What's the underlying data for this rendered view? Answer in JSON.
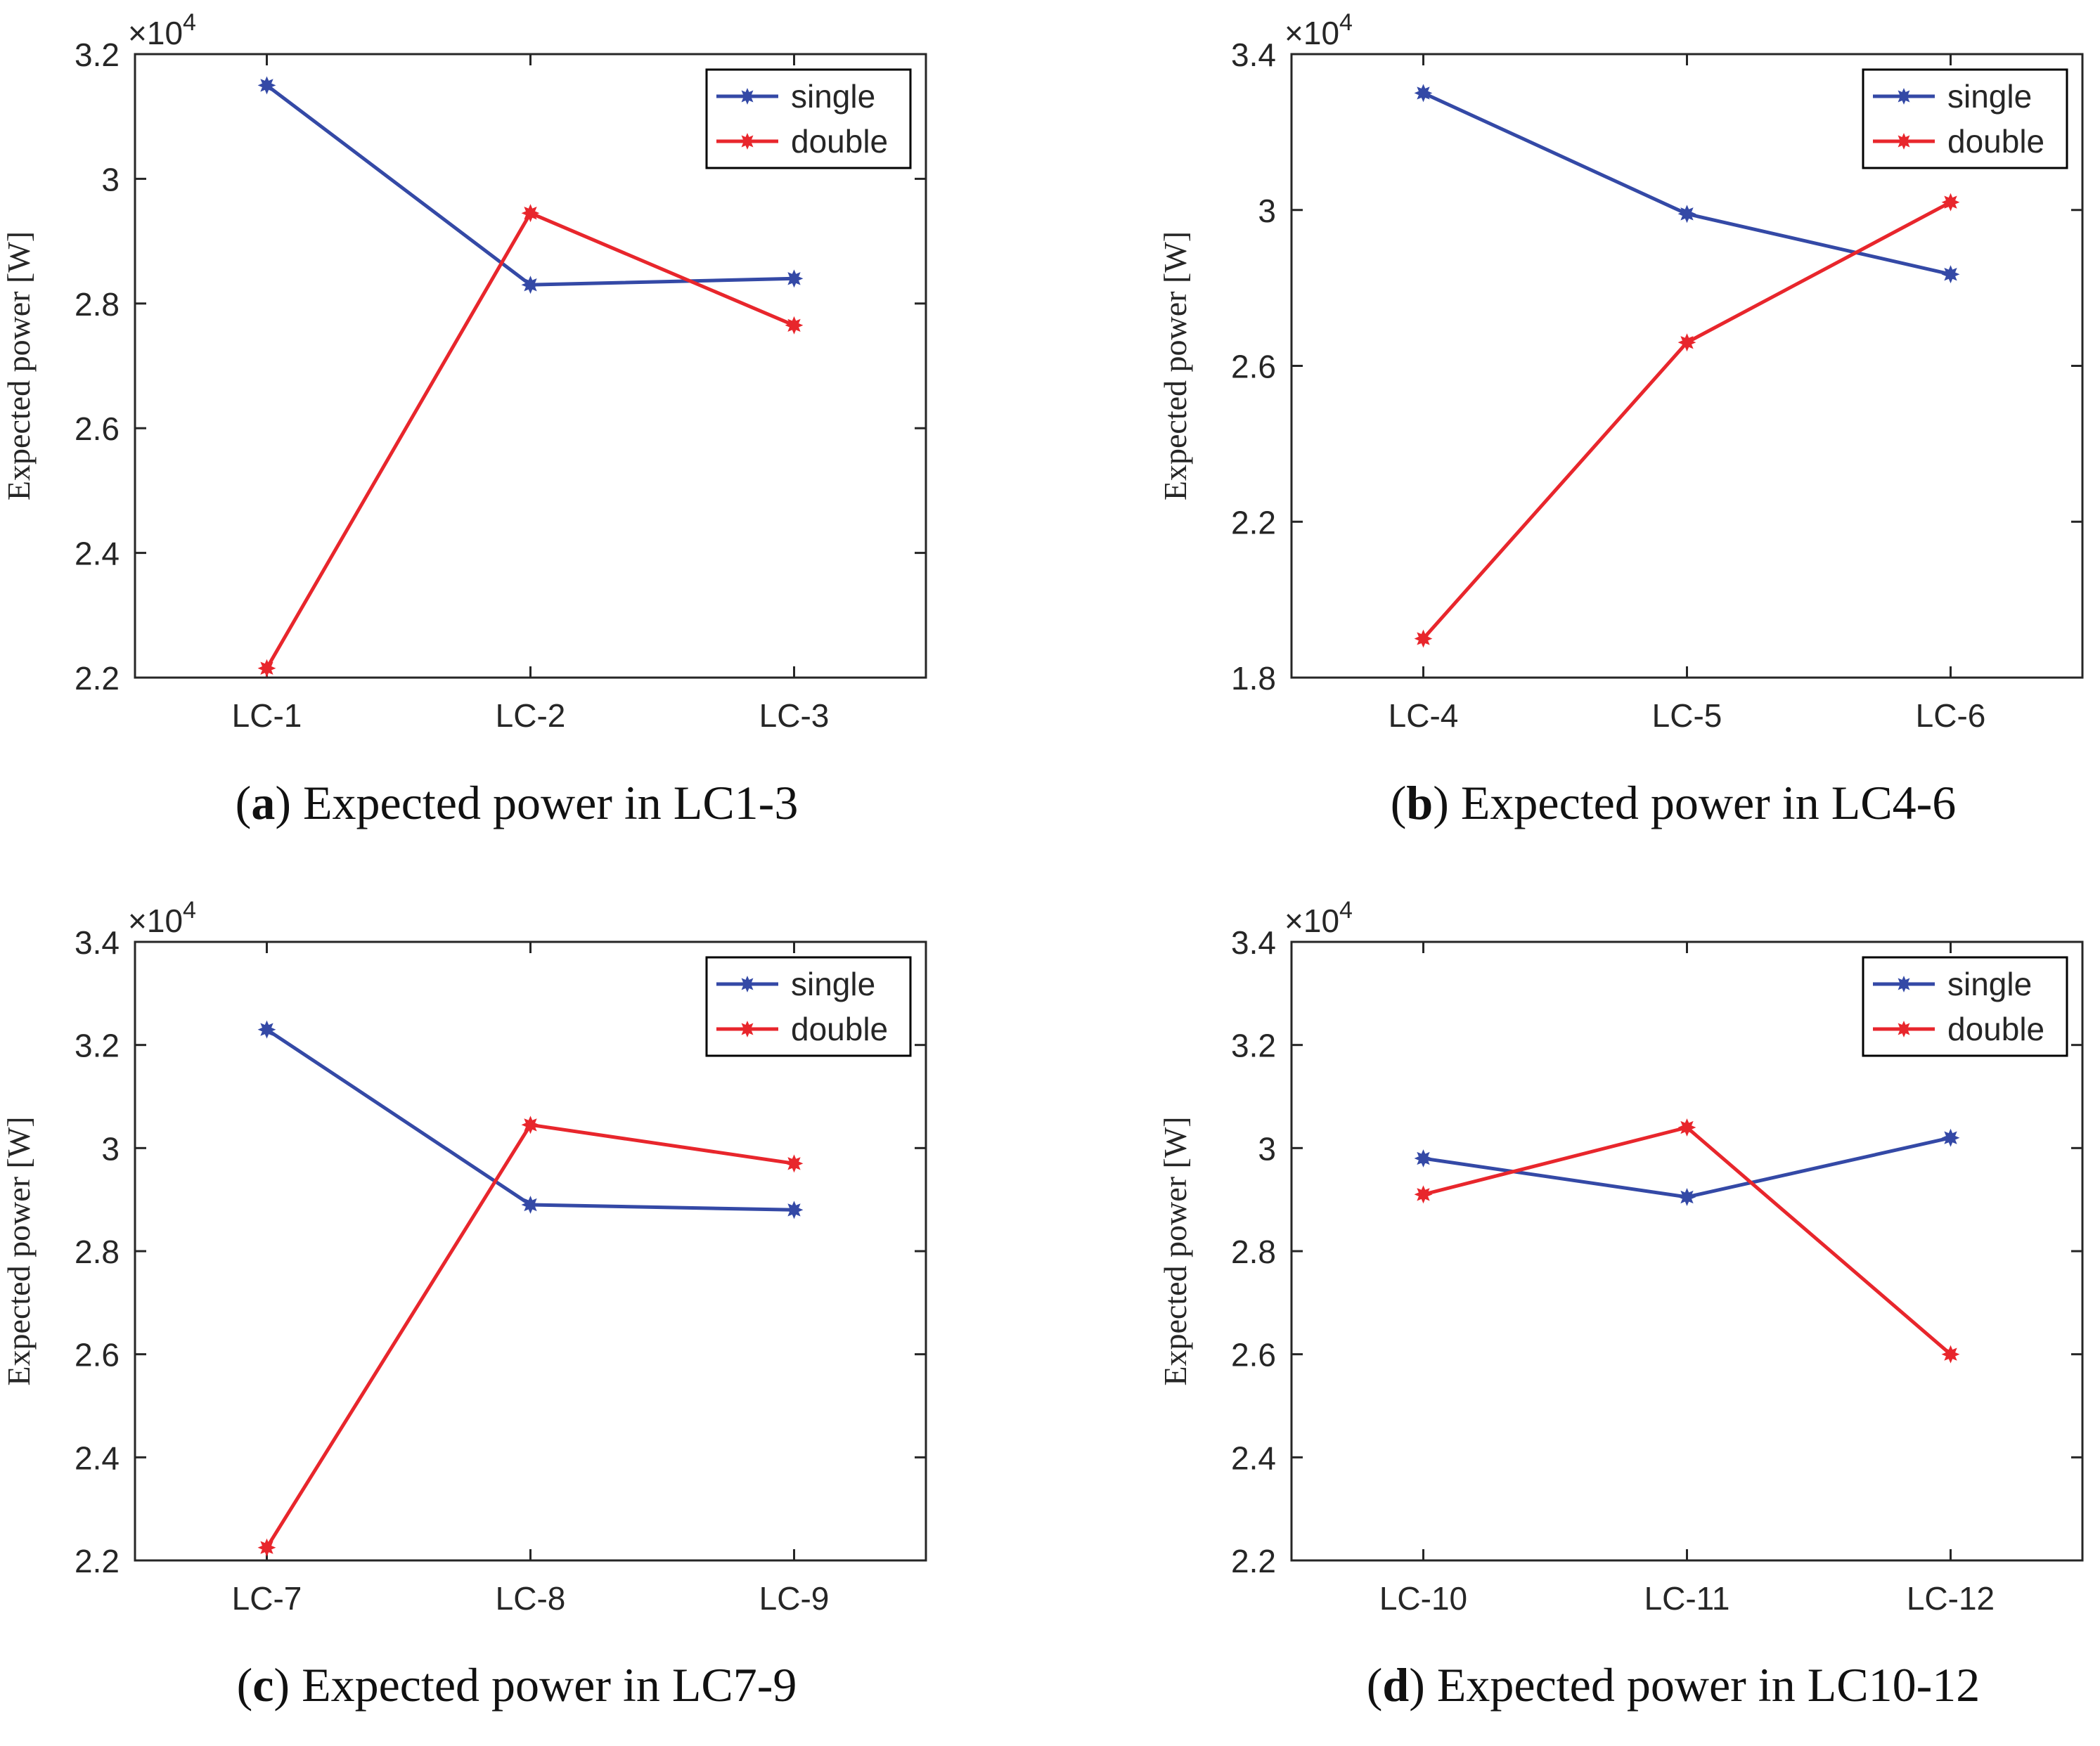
{
  "figure": {
    "panels": [
      "a",
      "b",
      "c",
      "d"
    ]
  },
  "style": {
    "single_color": "#3449a6",
    "double_color": "#e8262c",
    "axis_color": "#262626"
  },
  "chart_data": [
    {
      "id": "a",
      "type": "line",
      "caption_letter": "a",
      "caption_text": "Expected power in LC1-3",
      "categories": [
        "LC-1",
        "LC-2",
        "LC-3"
      ],
      "series": [
        {
          "name": "single",
          "values": [
            3.15,
            2.83,
            2.84
          ]
        },
        {
          "name": "double",
          "values": [
            2.215,
            2.945,
            2.765
          ]
        }
      ],
      "ylabel": "Expected power [W]",
      "exponent_label": "×10",
      "exponent_power": "4",
      "ylim": [
        2.2,
        3.2
      ],
      "yticks": [
        2.2,
        2.4,
        2.6,
        2.8,
        3.0,
        3.2
      ],
      "ytick_labels": [
        "2.2",
        "2.4",
        "2.6",
        "2.8",
        "3",
        "3.2"
      ],
      "legend": "top-right"
    },
    {
      "id": "b",
      "type": "line",
      "caption_letter": "b",
      "caption_text": "Expected power in LC4-6",
      "categories": [
        "LC-4",
        "LC-5",
        "LC-6"
      ],
      "series": [
        {
          "name": "single",
          "values": [
            3.3,
            2.99,
            2.835
          ]
        },
        {
          "name": "double",
          "values": [
            1.9,
            2.66,
            3.02
          ]
        }
      ],
      "ylabel": "Expected power [W]",
      "exponent_label": "×10",
      "exponent_power": "4",
      "ylim": [
        1.8,
        3.4
      ],
      "yticks": [
        1.8,
        2.2,
        2.6,
        3.0,
        3.4
      ],
      "ytick_labels": [
        "1.8",
        "2.2",
        "2.6",
        "3",
        "3.4"
      ],
      "legend": "top-right"
    },
    {
      "id": "c",
      "type": "line",
      "caption_letter": "c",
      "caption_text": "Expected power in LC7-9",
      "categories": [
        "LC-7",
        "LC-8",
        "LC-9"
      ],
      "series": [
        {
          "name": "single",
          "values": [
            3.23,
            2.89,
            2.88
          ]
        },
        {
          "name": "double",
          "values": [
            2.225,
            3.045,
            2.97
          ]
        }
      ],
      "ylabel": "Expected power [W]",
      "exponent_label": "×10",
      "exponent_power": "4",
      "ylim": [
        2.2,
        3.4
      ],
      "yticks": [
        2.2,
        2.4,
        2.6,
        2.8,
        3.0,
        3.2,
        3.4
      ],
      "ytick_labels": [
        "2.2",
        "2.4",
        "2.6",
        "2.8",
        "3",
        "3.2",
        "3.4"
      ],
      "legend": "top-right"
    },
    {
      "id": "d",
      "type": "line",
      "caption_letter": "d",
      "caption_text": "Expected power in LC10-12",
      "categories": [
        "LC-10",
        "LC-11",
        "LC-12"
      ],
      "series": [
        {
          "name": "single",
          "values": [
            2.98,
            2.905,
            3.02
          ]
        },
        {
          "name": "double",
          "values": [
            2.91,
            3.04,
            2.6
          ]
        }
      ],
      "ylabel": "Expected power [W]",
      "exponent_label": "×10",
      "exponent_power": "4",
      "ylim": [
        2.2,
        3.4
      ],
      "yticks": [
        2.2,
        2.4,
        2.6,
        2.8,
        3.0,
        3.2,
        3.4
      ],
      "ytick_labels": [
        "2.2",
        "2.4",
        "2.6",
        "2.8",
        "3",
        "3.2",
        "3.4"
      ],
      "legend": "top-right"
    }
  ]
}
